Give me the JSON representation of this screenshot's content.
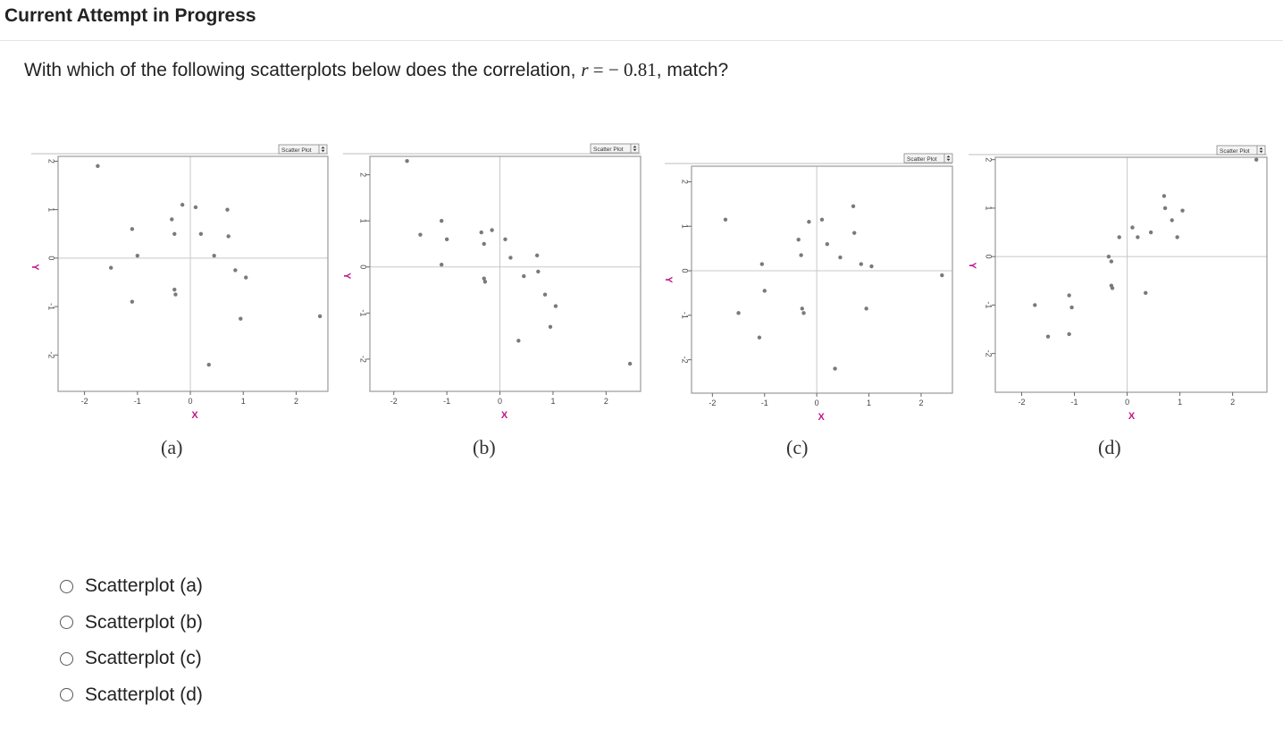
{
  "header": {
    "title": "Current Attempt in Progress"
  },
  "question": {
    "prefix": "With which of the following scatterplots below does the correlation, ",
    "variable": "r",
    "equals": " = ",
    "value": "− 0.81",
    "suffix": ", match?"
  },
  "plot_widget": {
    "menu_label": "Scatter Plot",
    "spinner_icon": "updown-spinner-icon"
  },
  "chart_data": [
    {
      "type": "scatter",
      "label": "(a)",
      "xlabel": "X",
      "ylabel": "Y",
      "xlim": [
        -2.5,
        2.6
      ],
      "ylim": [
        -2.75,
        2.1
      ],
      "xticks": [
        -2,
        -1,
        0,
        1,
        2
      ],
      "yticks": [
        -2,
        -1,
        0,
        1,
        2
      ],
      "points": [
        [
          -1.75,
          1.9
        ],
        [
          -1.5,
          -0.2
        ],
        [
          -1.1,
          0.6
        ],
        [
          -1.0,
          0.05
        ],
        [
          -1.1,
          -0.9
        ],
        [
          -0.35,
          0.8
        ],
        [
          -0.3,
          0.5
        ],
        [
          -0.15,
          1.1
        ],
        [
          0.1,
          1.05
        ],
        [
          -0.3,
          -0.65
        ],
        [
          -0.28,
          -0.75
        ],
        [
          0.2,
          0.5
        ],
        [
          0.45,
          0.05
        ],
        [
          0.7,
          1.0
        ],
        [
          0.72,
          0.45
        ],
        [
          0.85,
          -0.25
        ],
        [
          1.05,
          -0.4
        ],
        [
          0.95,
          -1.25
        ],
        [
          2.45,
          -1.2
        ],
        [
          0.35,
          -2.2
        ]
      ]
    },
    {
      "type": "scatter",
      "label": "(b)",
      "xlabel": "X",
      "ylabel": "Y",
      "xlim": [
        -2.45,
        2.65
      ],
      "ylim": [
        -2.7,
        2.4
      ],
      "xticks": [
        -2,
        -1,
        0,
        1,
        2
      ],
      "yticks": [
        -2,
        -1,
        0,
        1,
        2
      ],
      "points": [
        [
          -1.75,
          2.3
        ],
        [
          -1.5,
          0.7
        ],
        [
          -1.1,
          1.0
        ],
        [
          -1.0,
          0.6
        ],
        [
          -1.1,
          0.05
        ],
        [
          -0.35,
          0.75
        ],
        [
          -0.3,
          0.5
        ],
        [
          -0.15,
          0.8
        ],
        [
          0.1,
          0.6
        ],
        [
          -0.3,
          -0.25
        ],
        [
          -0.28,
          -0.32
        ],
        [
          0.2,
          0.2
        ],
        [
          0.45,
          -0.2
        ],
        [
          0.7,
          0.25
        ],
        [
          0.72,
          -0.1
        ],
        [
          0.85,
          -0.6
        ],
        [
          1.05,
          -0.85
        ],
        [
          0.95,
          -1.3
        ],
        [
          2.45,
          -2.1
        ],
        [
          0.35,
          -1.6
        ]
      ]
    },
    {
      "type": "scatter",
      "label": "(c)",
      "xlabel": "X",
      "ylabel": "Y",
      "xlim": [
        -2.4,
        2.6
      ],
      "ylim": [
        -2.75,
        2.35
      ],
      "xticks": [
        -2,
        -1,
        0,
        1,
        2
      ],
      "yticks": [
        -2,
        -1,
        0,
        1,
        2
      ],
      "points": [
        [
          -1.75,
          1.15
        ],
        [
          -1.5,
          -0.95
        ],
        [
          -1.1,
          -1.5
        ],
        [
          -1.0,
          -0.45
        ],
        [
          -1.05,
          0.15
        ],
        [
          -0.35,
          0.7
        ],
        [
          -0.3,
          0.35
        ],
        [
          -0.15,
          1.1
        ],
        [
          0.1,
          1.15
        ],
        [
          -0.28,
          -0.85
        ],
        [
          -0.25,
          -0.95
        ],
        [
          0.2,
          0.6
        ],
        [
          0.45,
          0.3
        ],
        [
          0.7,
          1.45
        ],
        [
          0.72,
          0.85
        ],
        [
          0.85,
          0.15
        ],
        [
          1.05,
          0.1
        ],
        [
          0.95,
          -0.85
        ],
        [
          2.4,
          -0.1
        ],
        [
          0.35,
          -2.2
        ]
      ]
    },
    {
      "type": "scatter",
      "label": "(d)",
      "xlabel": "X",
      "ylabel": "Y",
      "xlim": [
        -2.5,
        2.65
      ],
      "ylim": [
        -2.8,
        2.05
      ],
      "xticks": [
        -2,
        -1,
        0,
        1,
        2
      ],
      "yticks": [
        -2,
        -1,
        0,
        1,
        2
      ],
      "points": [
        [
          -1.75,
          -1.0
        ],
        [
          -1.5,
          -1.65
        ],
        [
          -1.1,
          -0.8
        ],
        [
          -1.05,
          -1.05
        ],
        [
          -1.1,
          -1.6
        ],
        [
          -0.35,
          0.0
        ],
        [
          -0.3,
          -0.1
        ],
        [
          -0.3,
          -0.6
        ],
        [
          -0.28,
          -0.65
        ],
        [
          -0.15,
          0.4
        ],
        [
          0.1,
          0.6
        ],
        [
          0.2,
          0.4
        ],
        [
          0.45,
          0.5
        ],
        [
          0.35,
          -0.75
        ],
        [
          0.7,
          1.25
        ],
        [
          0.72,
          1.0
        ],
        [
          0.85,
          0.75
        ],
        [
          1.05,
          0.95
        ],
        [
          0.95,
          0.4
        ],
        [
          2.45,
          2.0
        ]
      ]
    }
  ],
  "options": [
    {
      "label": "Scatterplot (a)"
    },
    {
      "label": "Scatterplot (b)"
    },
    {
      "label": "Scatterplot (c)"
    },
    {
      "label": "Scatterplot (d)"
    }
  ],
  "colors": {
    "point": "#7a7a7a",
    "axis_label": "#c0158a",
    "frame": "#9a9a9a",
    "zero_line": "#c8c8c8"
  }
}
